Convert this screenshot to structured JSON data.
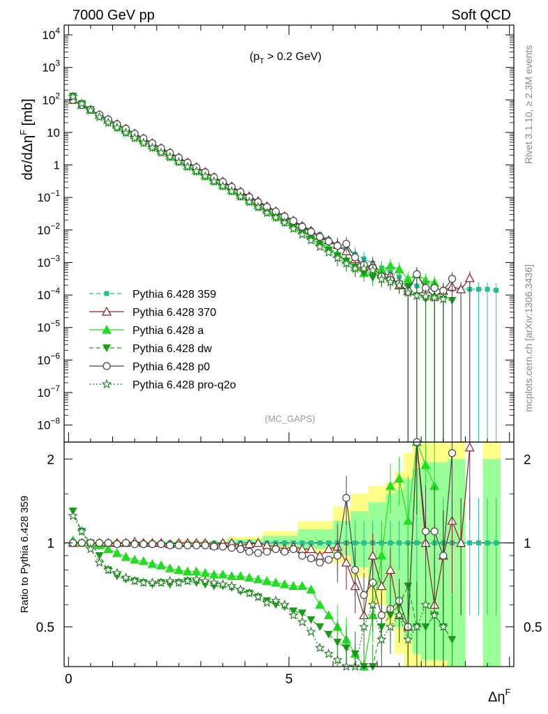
{
  "header": {
    "left": "7000 GeV pp",
    "right": "Soft QCD"
  },
  "side_labels": {
    "rivet": "Rivet 3.1.10, ≥ 2.3M events",
    "mcplots": "mcplots.cern.ch [arXiv:1306.3436]"
  },
  "top_panel": {
    "ylabel": {
      "main": "dσ/dΔη",
      "sup": "F",
      "unit": " [mb]"
    },
    "annotation": {
      "open": "(p",
      "sub": "T",
      "close": " > 0.2 GeV)"
    },
    "watermark": "(MC_GAPS)",
    "ytick_labels": [
      {
        "base": "10",
        "exp": "4",
        "value": 10000
      },
      {
        "base": "10",
        "exp": "3",
        "value": 1000
      },
      {
        "base": "10",
        "exp": "2",
        "value": 100
      },
      {
        "base": "10",
        "exp": "",
        "value": 10
      },
      {
        "base": "1",
        "exp": "",
        "value": 1
      },
      {
        "base": "10",
        "exp": "−1",
        "value": 0.1
      },
      {
        "base": "10",
        "exp": "−2",
        "value": 0.01
      },
      {
        "base": "10",
        "exp": "−3",
        "value": 0.001
      },
      {
        "base": "10",
        "exp": "−4",
        "value": 0.0001
      },
      {
        "base": "10",
        "exp": "−5",
        "value": 1e-05
      },
      {
        "base": "10",
        "exp": "−6",
        "value": 1e-06
      },
      {
        "base": "10",
        "exp": "−7",
        "value": 1e-07
      },
      {
        "base": "10",
        "exp": "−8",
        "value": 1e-08
      }
    ]
  },
  "bottom_panel": {
    "ylabel": "Ratio to Pythia 6.428 359",
    "ytick_labels": [
      "2",
      "1",
      "0.5"
    ],
    "ytick_values": [
      2,
      1,
      0.5
    ]
  },
  "xaxis": {
    "label": {
      "main": "Δη",
      "sup": "F"
    },
    "tick_labels": [
      "0",
      "5"
    ],
    "tick_values": [
      0,
      5
    ]
  },
  "legend": [
    {
      "label": "Pythia 6.428 359",
      "color": "#1fbf8f",
      "marker": "square",
      "dash": "6,4"
    },
    {
      "label": "Pythia 6.428 370",
      "color": "#8b1a2b",
      "marker": "triangle-open",
      "dash": ""
    },
    {
      "label": "Pythia 6.428 a",
      "color": "#22dd22",
      "marker": "triangle",
      "dash": ""
    },
    {
      "label": "Pythia 6.428 dw",
      "color": "#1a9e1a",
      "marker": "triangle-down",
      "dash": "6,4"
    },
    {
      "label": "Pythia 6.428 p0",
      "color": "#444444",
      "marker": "circle-open",
      "dash": ""
    },
    {
      "label": "Pythia 6.428 pro-q2o",
      "color": "#1e7a1e",
      "marker": "star",
      "dash": "2,3"
    }
  ],
  "chart_data": {
    "type": "line",
    "xlabel": "ΔηF",
    "ylabel": "dσ/dΔηF [mb]",
    "xlim": [
      -0.1,
      10.1
    ],
    "ylim": [
      3e-09,
      20000
    ],
    "yscale": "log",
    "ratio_ylim": [
      0.36,
      2.3
    ],
    "ratio_yscale": "log",
    "x": [
      0.1,
      0.3,
      0.5,
      0.7,
      0.9,
      1.1,
      1.3,
      1.5,
      1.7,
      1.9,
      2.1,
      2.3,
      2.5,
      2.7,
      2.9,
      3.1,
      3.3,
      3.5,
      3.7,
      3.9,
      4.1,
      4.3,
      4.5,
      4.7,
      4.9,
      5.1,
      5.3,
      5.5,
      5.7,
      5.9,
      6.1,
      6.3,
      6.5,
      6.7,
      6.9,
      7.1,
      7.3,
      7.5,
      7.7,
      7.9,
      8.1,
      8.3,
      8.5,
      8.7,
      8.9,
      9.1,
      9.3,
      9.5,
      9.7
    ],
    "reference_values": [
      100,
      70,
      50,
      35,
      25,
      18,
      13,
      9.2,
      6.6,
      4.7,
      3.3,
      2.4,
      1.7,
      1.2,
      0.86,
      0.61,
      0.43,
      0.31,
      0.22,
      0.155,
      0.11,
      0.078,
      0.055,
      0.039,
      0.028,
      0.02,
      0.014,
      0.01,
      0.0072,
      0.0051,
      0.0036,
      0.0026,
      0.0018,
      0.0013,
      0.00095,
      0.00068,
      0.0005,
      0.00036,
      0.00026,
      0.00019,
      0.00015,
      0.00015,
      0.00015,
      0.00015,
      0.00015,
      0.00015,
      0.00015,
      0.00015,
      0.00014
    ],
    "mc_band": {
      "x_edges": [
        0.0,
        3.6,
        4.4,
        5.2,
        6.0,
        6.4,
        6.8,
        7.2,
        7.4,
        7.6,
        7.8,
        8.0,
        8.6,
        8.8,
        9.0,
        9.4,
        9.6,
        9.8
      ],
      "yellow_lo": [
        0.98,
        0.97,
        0.95,
        0.92,
        0.85,
        0.75,
        0.6,
        0.5,
        0.4,
        0.36,
        0.36,
        0.36,
        0.36,
        0.36,
        0.0,
        0.36,
        0.36,
        0.36
      ],
      "yellow_hi": [
        1.02,
        1.05,
        1.1,
        1.2,
        1.35,
        1.5,
        1.6,
        1.65,
        1.8,
        2.1,
        2.3,
        2.3,
        2.3,
        2.3,
        0.0,
        2.3,
        2.3,
        2.3
      ],
      "green_lo": [
        0.99,
        0.98,
        0.97,
        0.95,
        0.9,
        0.82,
        0.7,
        0.6,
        0.5,
        0.45,
        0.4,
        0.38,
        0.36,
        0.36,
        0.0,
        0.36,
        0.36,
        0.36
      ],
      "green_hi": [
        1.01,
        1.03,
        1.06,
        1.12,
        1.2,
        1.3,
        1.4,
        1.5,
        1.55,
        1.7,
        1.85,
        1.95,
        2.0,
        2.0,
        0.0,
        2.0,
        2.0,
        2.0
      ]
    },
    "series": [
      {
        "name": "Pythia 6.428 359",
        "ratio": [
          1,
          1,
          1,
          1,
          1,
          1,
          1,
          1,
          1,
          1,
          1,
          1,
          1,
          1,
          1,
          1,
          1,
          1,
          1,
          1,
          1,
          1,
          1,
          1,
          1,
          1,
          1,
          1,
          1,
          1,
          1,
          1,
          1,
          1,
          1,
          1,
          1,
          1,
          1,
          1,
          1,
          1,
          1,
          1,
          1,
          1,
          1,
          1,
          1
        ]
      },
      {
        "name": "Pythia 6.428 370",
        "ratio": [
          1.0,
          1.0,
          1.0,
          1.0,
          1.0,
          1.0,
          1.0,
          1.01,
          1.0,
          1.0,
          1.0,
          0.99,
          1.0,
          1.0,
          1.0,
          1.0,
          0.98,
          1.0,
          1.0,
          0.98,
          0.99,
          1.0,
          0.98,
          0.97,
          0.95,
          0.97,
          0.95,
          0.95,
          0.9,
          0.95,
          0.97,
          0.85,
          0.7,
          0.55,
          0.9,
          0.7,
          0.8,
          0.55,
          0.5,
          2.3,
          1.0,
          0.6,
          0.9,
          1.2,
          1.0,
          2.2
        ]
      },
      {
        "name": "Pythia 6.428 a",
        "ratio": [
          1.02,
          1.0,
          1.0,
          0.98,
          0.95,
          0.92,
          0.89,
          0.87,
          0.86,
          0.84,
          0.83,
          0.81,
          0.8,
          0.79,
          0.79,
          0.78,
          0.77,
          0.77,
          0.76,
          0.76,
          0.75,
          0.74,
          0.73,
          0.72,
          0.71,
          0.7,
          0.7,
          0.68,
          0.6,
          0.55,
          0.5,
          0.45,
          0.4,
          0.36,
          0.55,
          0.9,
          1.6,
          1.7,
          1.2,
          2.3,
          1.9,
          1.6
        ]
      },
      {
        "name": "Pythia 6.428 dw",
        "ratio": [
          1.3,
          1.1,
          1.0,
          0.9,
          0.8,
          0.76,
          0.74,
          0.73,
          0.72,
          0.71,
          0.72,
          0.71,
          0.72,
          0.73,
          0.72,
          0.71,
          0.7,
          0.7,
          0.69,
          0.67,
          0.66,
          0.64,
          0.62,
          0.6,
          0.59,
          0.57,
          0.56,
          0.53,
          0.5,
          0.47,
          0.44,
          0.42,
          0.4,
          0.36,
          0.36,
          0.5,
          0.55,
          0.6,
          0.7,
          0.5,
          0.5,
          0.55,
          0.5,
          0.45
        ]
      },
      {
        "name": "Pythia 6.428 p0",
        "ratio": [
          1.0,
          1.0,
          1.0,
          1.0,
          1.0,
          0.99,
          1.0,
          0.99,
          0.99,
          0.99,
          0.99,
          0.98,
          0.98,
          0.98,
          0.98,
          0.98,
          0.97,
          0.97,
          0.96,
          0.95,
          0.93,
          0.92,
          0.93,
          0.95,
          0.93,
          0.95,
          0.9,
          0.88,
          0.85,
          0.87,
          0.9,
          1.45,
          0.8,
          0.65,
          0.72,
          0.55,
          0.58,
          0.62,
          0.5,
          2.3,
          1.1,
          1.1,
          0.9,
          2.1
        ]
      },
      {
        "name": "Pythia 6.428 pro-q2o",
        "ratio": [
          1.25,
          1.1,
          0.95,
          0.85,
          0.8,
          0.78,
          0.75,
          0.73,
          0.72,
          0.72,
          0.72,
          0.73,
          0.72,
          0.73,
          0.74,
          0.73,
          0.72,
          0.71,
          0.7,
          0.68,
          0.66,
          0.64,
          0.61,
          0.62,
          0.6,
          0.55,
          0.52,
          0.48,
          0.42,
          0.4,
          0.38,
          0.36,
          0.36,
          0.5,
          0.6,
          0.45,
          0.5,
          0.55,
          0.45,
          0.5,
          0.6,
          0.55,
          0.5
        ]
      }
    ]
  }
}
